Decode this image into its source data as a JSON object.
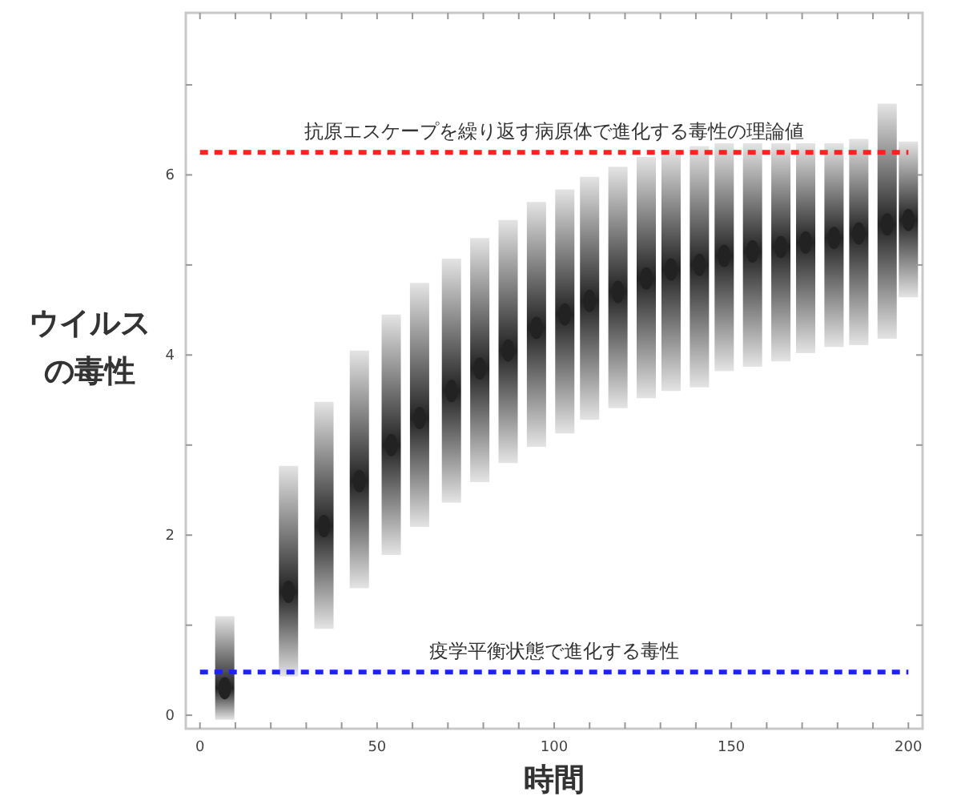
{
  "chart_data": {
    "type": "scatter",
    "xlabel": "時間",
    "ylabel": "ウイルスの毒性",
    "xlim": [
      -4,
      204
    ],
    "ylim": [
      -0.15,
      7.8
    ],
    "xticks": [
      0,
      {
        "value": 10,
        "label": null
      },
      {
        "value": 20,
        "label": null
      },
      {
        "value": 30,
        "label": null
      },
      {
        "value": 40,
        "label": null
      },
      50,
      {
        "value": 60,
        "label": null
      },
      {
        "value": 70,
        "label": null
      },
      {
        "value": 80,
        "label": null
      },
      {
        "value": 90,
        "label": null
      },
      100,
      {
        "value": 110,
        "label": null
      },
      {
        "value": 120,
        "label": null
      },
      {
        "value": 130,
        "label": null
      },
      {
        "value": 140,
        "label": null
      },
      150,
      {
        "value": 160,
        "label": null
      },
      {
        "value": 170,
        "label": null
      },
      {
        "value": 180,
        "label": null
      },
      {
        "value": 190,
        "label": null
      },
      200
    ],
    "yticks": [
      0,
      {
        "value": 1,
        "label": null
      },
      2,
      {
        "value": 3,
        "label": null
      },
      4,
      {
        "value": 5,
        "label": null
      },
      6,
      {
        "value": 7,
        "label": null
      }
    ],
    "series": [
      {
        "color": "#222222",
        "x": [
          7,
          25,
          35,
          45,
          54,
          62,
          71,
          79,
          87,
          95,
          103,
          110,
          118,
          126,
          133,
          141,
          148,
          156,
          164,
          171,
          179,
          186,
          194,
          200
        ],
        "values": [
          0.3,
          1.37,
          2.1,
          2.6,
          3.0,
          3.3,
          3.6,
          3.85,
          4.05,
          4.3,
          4.45,
          4.6,
          4.7,
          4.85,
          4.95,
          5.0,
          5.1,
          5.15,
          5.2,
          5.25,
          5.3,
          5.35,
          5.45,
          5.5
        ],
        "errors": [
          [
            -0.05,
            1.1
          ],
          [
            0.43,
            2.77
          ],
          [
            0.96,
            3.48
          ],
          [
            1.41,
            4.05
          ],
          [
            1.78,
            4.45
          ],
          [
            2.09,
            4.8
          ],
          [
            2.36,
            5.07
          ],
          [
            2.59,
            5.3
          ],
          [
            2.8,
            5.5
          ],
          [
            2.98,
            5.7
          ],
          [
            3.13,
            5.84
          ],
          [
            3.28,
            5.98
          ],
          [
            3.41,
            6.09
          ],
          [
            3.52,
            6.2
          ],
          [
            3.6,
            6.28
          ],
          [
            3.64,
            6.32
          ],
          [
            3.82,
            6.35
          ],
          [
            3.87,
            6.35
          ],
          [
            3.93,
            6.35
          ],
          [
            4.02,
            6.35
          ],
          [
            4.09,
            6.35
          ],
          [
            4.11,
            6.4
          ],
          [
            4.18,
            6.79
          ],
          [
            4.64,
            6.37
          ]
        ]
      }
    ],
    "ref_lines": [
      {
        "axis": "y",
        "value": 6.25,
        "label": "抗原エスケープを繰り返す病原体で進化する毒性の理論値",
        "color": "#ff2020",
        "line_style": "dashed"
      },
      {
        "axis": "y",
        "value": 0.48,
        "label": "疫学平衡状態で進化する毒性",
        "color": "#2020ff",
        "line_style": "dashed"
      }
    ]
  }
}
